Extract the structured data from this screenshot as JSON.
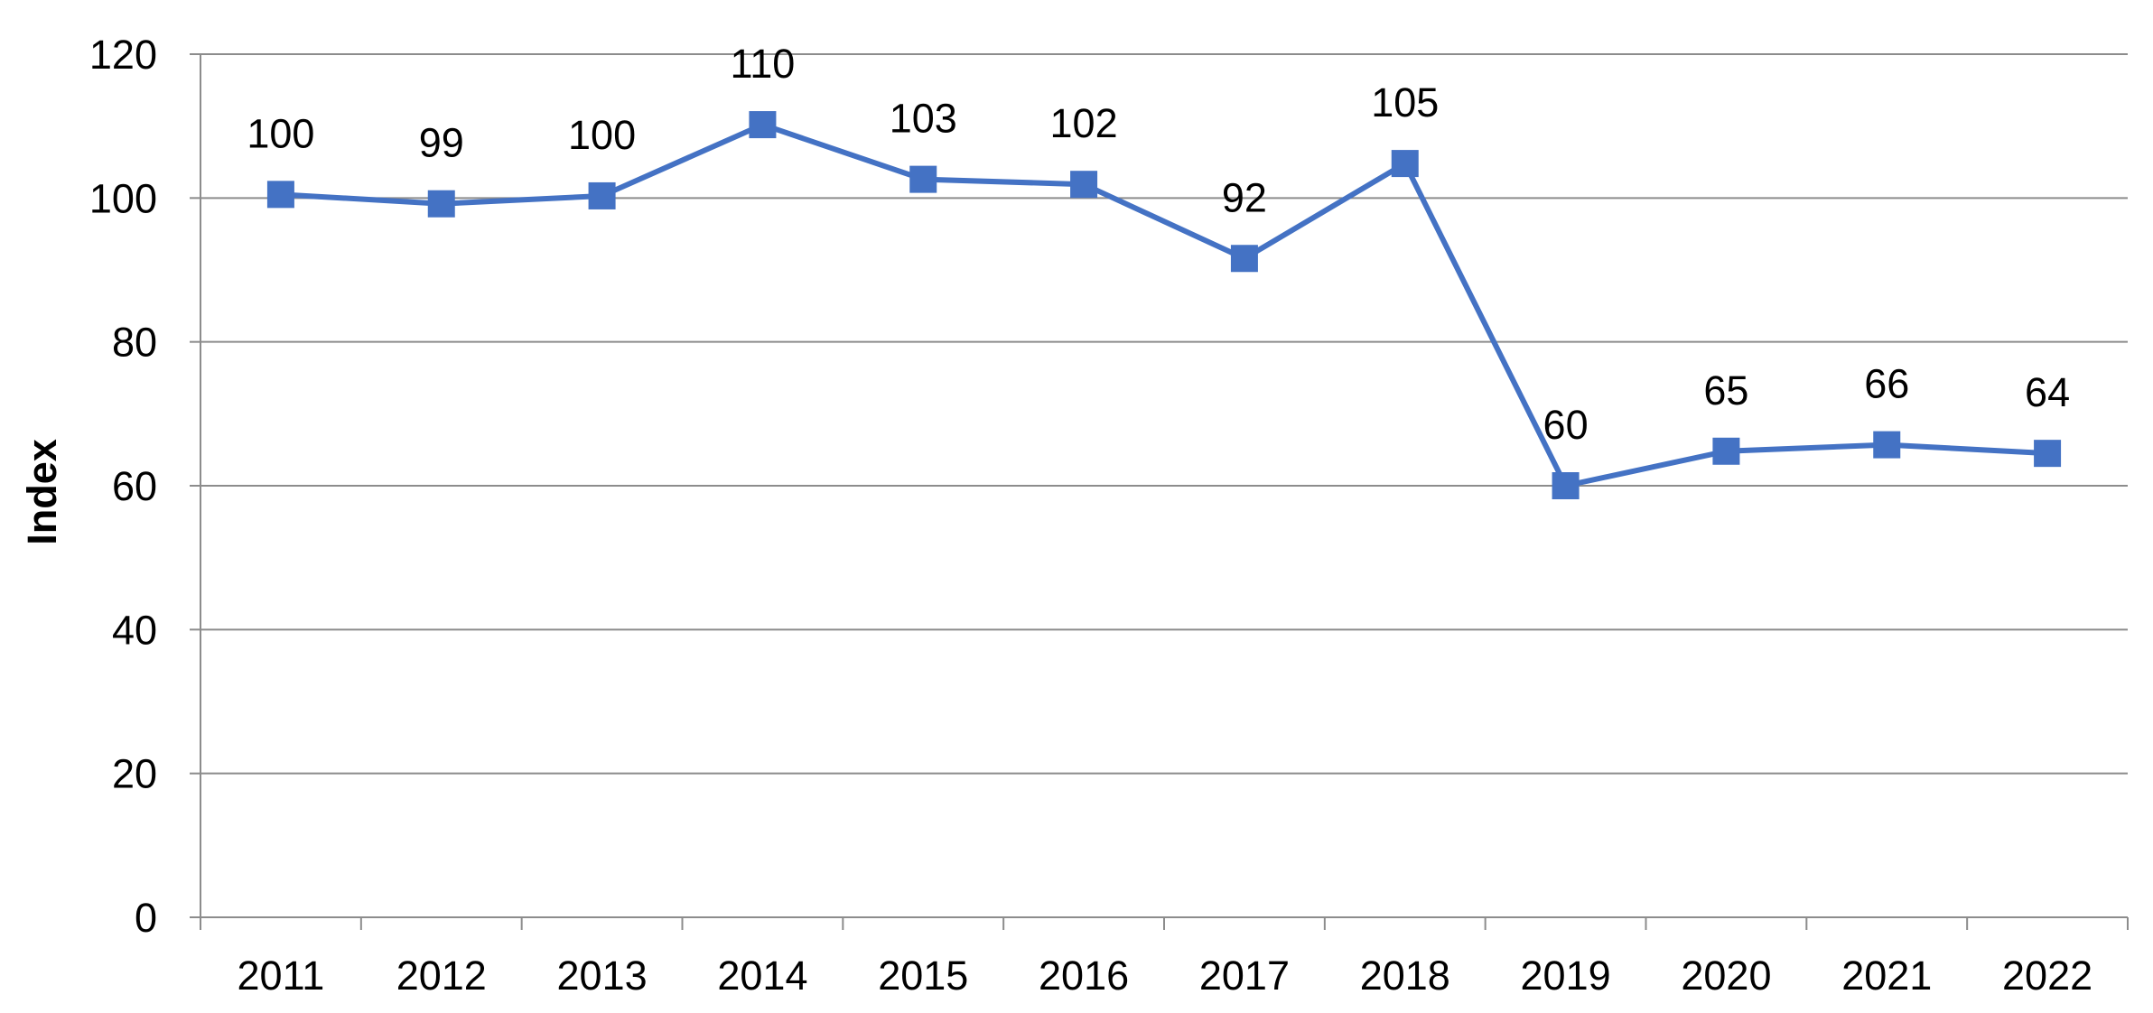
{
  "chart_data": {
    "type": "line",
    "title": "",
    "xlabel": "",
    "ylabel": "Index",
    "categories": [
      "2011",
      "2012",
      "2013",
      "2014",
      "2015",
      "2016",
      "2017",
      "2018",
      "2019",
      "2020",
      "2021",
      "2022"
    ],
    "series": [
      {
        "values": [
          100.5,
          99.2,
          100.3,
          110.2,
          102.6,
          101.9,
          91.6,
          104.8,
          60.0,
          64.8,
          65.7,
          64.5
        ],
        "labels": [
          "100",
          "99",
          "100",
          "110",
          "103",
          "102",
          "92",
          "105",
          "60",
          "65",
          "66",
          "64"
        ],
        "color": "#4472C4",
        "marker": "square"
      }
    ],
    "ylim": [
      0,
      120
    ],
    "yticks": [
      0,
      20,
      40,
      60,
      80,
      100,
      120
    ],
    "grid": true,
    "legend": "none"
  }
}
